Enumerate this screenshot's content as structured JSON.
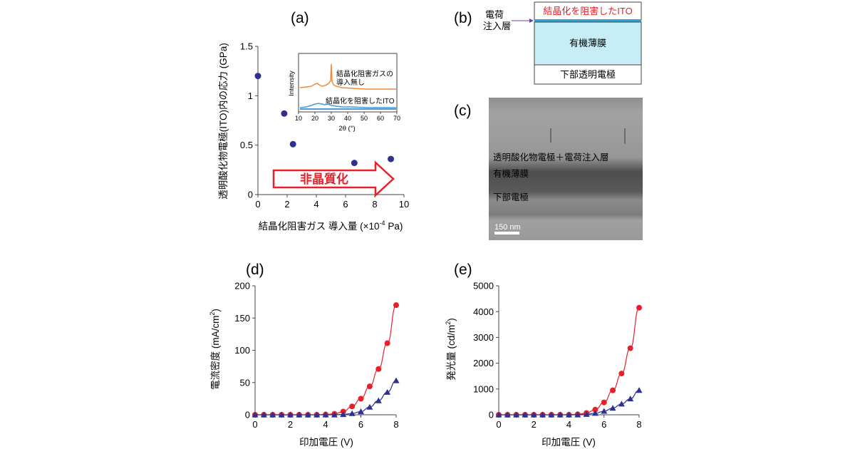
{
  "panels": {
    "a": {
      "label": "(a)"
    },
    "b": {
      "label": "(b)"
    },
    "c": {
      "label": "(c)"
    },
    "d": {
      "label": "(d)"
    },
    "e": {
      "label": "(e)"
    }
  },
  "chart_data": [
    {
      "id": "a",
      "type": "scatter",
      "ylabel": "透明酸化物電極(ITO)内の応力 (GPa)",
      "xlabel_text": "結晶化阻害ガス 導入量 (×10",
      "xlabel_sup": "-4",
      "xlabel_unit": " Pa)",
      "xlim": [
        0,
        10
      ],
      "ylim": [
        0,
        1.5
      ],
      "xticks": [
        "0",
        "2",
        "4",
        "6",
        "8",
        "10"
      ],
      "yticks": [
        "0",
        "0.5",
        "1",
        "1.5"
      ],
      "x": [
        0,
        1.8,
        2.4,
        6.6,
        9.1
      ],
      "y": [
        1.2,
        0.82,
        0.51,
        0.32,
        0.36
      ],
      "color": "#2e3192",
      "arrow_label": "非晶質化",
      "arrow_color": "#e8202a"
    },
    {
      "id": "a-inset",
      "type": "line",
      "ylabel": "Intensity",
      "xlabel": "2θ (°)",
      "xlim": [
        10,
        70
      ],
      "xticks": [
        "10",
        "20",
        "30",
        "40",
        "50",
        "60",
        "70"
      ],
      "series": [
        {
          "name": "結晶化阻害ガスの導入無し",
          "name_lines": [
            "結晶化阻害ガスの",
            "導入無し"
          ],
          "color": "#f08a3c"
        },
        {
          "name": "結晶化を阻害したITO",
          "color": "#4a9bd9"
        }
      ]
    },
    {
      "id": "d",
      "type": "line",
      "ylabel_text": "電流密度 (mA/cm",
      "ylabel_sup": "2",
      "ylabel_close": ")",
      "xlabel": "印加電圧 (V)",
      "xlim": [
        0,
        8
      ],
      "ylim": [
        0,
        200
      ],
      "xticks": [
        "0",
        "2",
        "4",
        "6",
        "8"
      ],
      "yticks": [
        "0",
        "50",
        "100",
        "150",
        "200"
      ],
      "x": [
        0,
        0.5,
        1,
        1.5,
        2,
        2.5,
        3,
        3.5,
        4,
        4.5,
        5,
        5.5,
        6,
        6.5,
        7,
        7.5,
        8
      ],
      "series": [
        {
          "values": [
            0,
            0,
            0,
            0,
            0,
            0,
            0,
            0,
            0.5,
            1.5,
            5,
            13,
            25,
            44,
            71,
            111,
            170
          ],
          "color": "#e8202a",
          "marker": "circle"
        },
        {
          "values": [
            0,
            0,
            0,
            0,
            0,
            0,
            0,
            0,
            0,
            0,
            0.5,
            2,
            5,
            12,
            22,
            35,
            53
          ],
          "color": "#2e3192",
          "marker": "triangle"
        }
      ]
    },
    {
      "id": "e",
      "type": "line",
      "ylabel_text": "発光量 (cd/m",
      "ylabel_sup": "2",
      "ylabel_close": ")",
      "xlabel": "印加電圧 (V)",
      "xlim": [
        0,
        8
      ],
      "ylim": [
        0,
        5000
      ],
      "xticks": [
        "0",
        "2",
        "4",
        "6",
        "8"
      ],
      "yticks": [
        "0",
        "1000",
        "2000",
        "3000",
        "4000",
        "5000"
      ],
      "x": [
        0,
        0.5,
        1,
        1.5,
        2,
        2.5,
        3,
        3.5,
        4,
        4.5,
        5,
        5.5,
        6,
        6.5,
        7,
        7.5,
        8
      ],
      "series": [
        {
          "values": [
            0,
            0,
            0,
            0,
            0,
            0,
            0,
            0,
            0,
            20,
            70,
            200,
            480,
            950,
            1600,
            2580,
            4150
          ],
          "color": "#e8202a",
          "marker": "circle"
        },
        {
          "values": [
            0,
            0,
            0,
            0,
            0,
            0,
            0,
            0,
            0,
            0,
            20,
            60,
            140,
            260,
            420,
            620,
            950
          ],
          "color": "#2e3192",
          "marker": "triangle"
        }
      ]
    }
  ],
  "diagram_b": {
    "top_layer": "結晶化を阻害したITO",
    "inject_label_lines": [
      "電荷",
      "注入層"
    ],
    "middle_layer": "有機薄膜",
    "bottom_layer": "下部透明電極",
    "top_color": "#e8202a",
    "inject_color": "#2ea3d6",
    "middle_fill": "#c7eef6"
  },
  "micrograph_c": {
    "layer_top": "透明酸化物電極＋電荷注入層",
    "layer_mid": "有機薄膜",
    "layer_bottom": "下部電極",
    "scale_bar": "150 nm"
  }
}
